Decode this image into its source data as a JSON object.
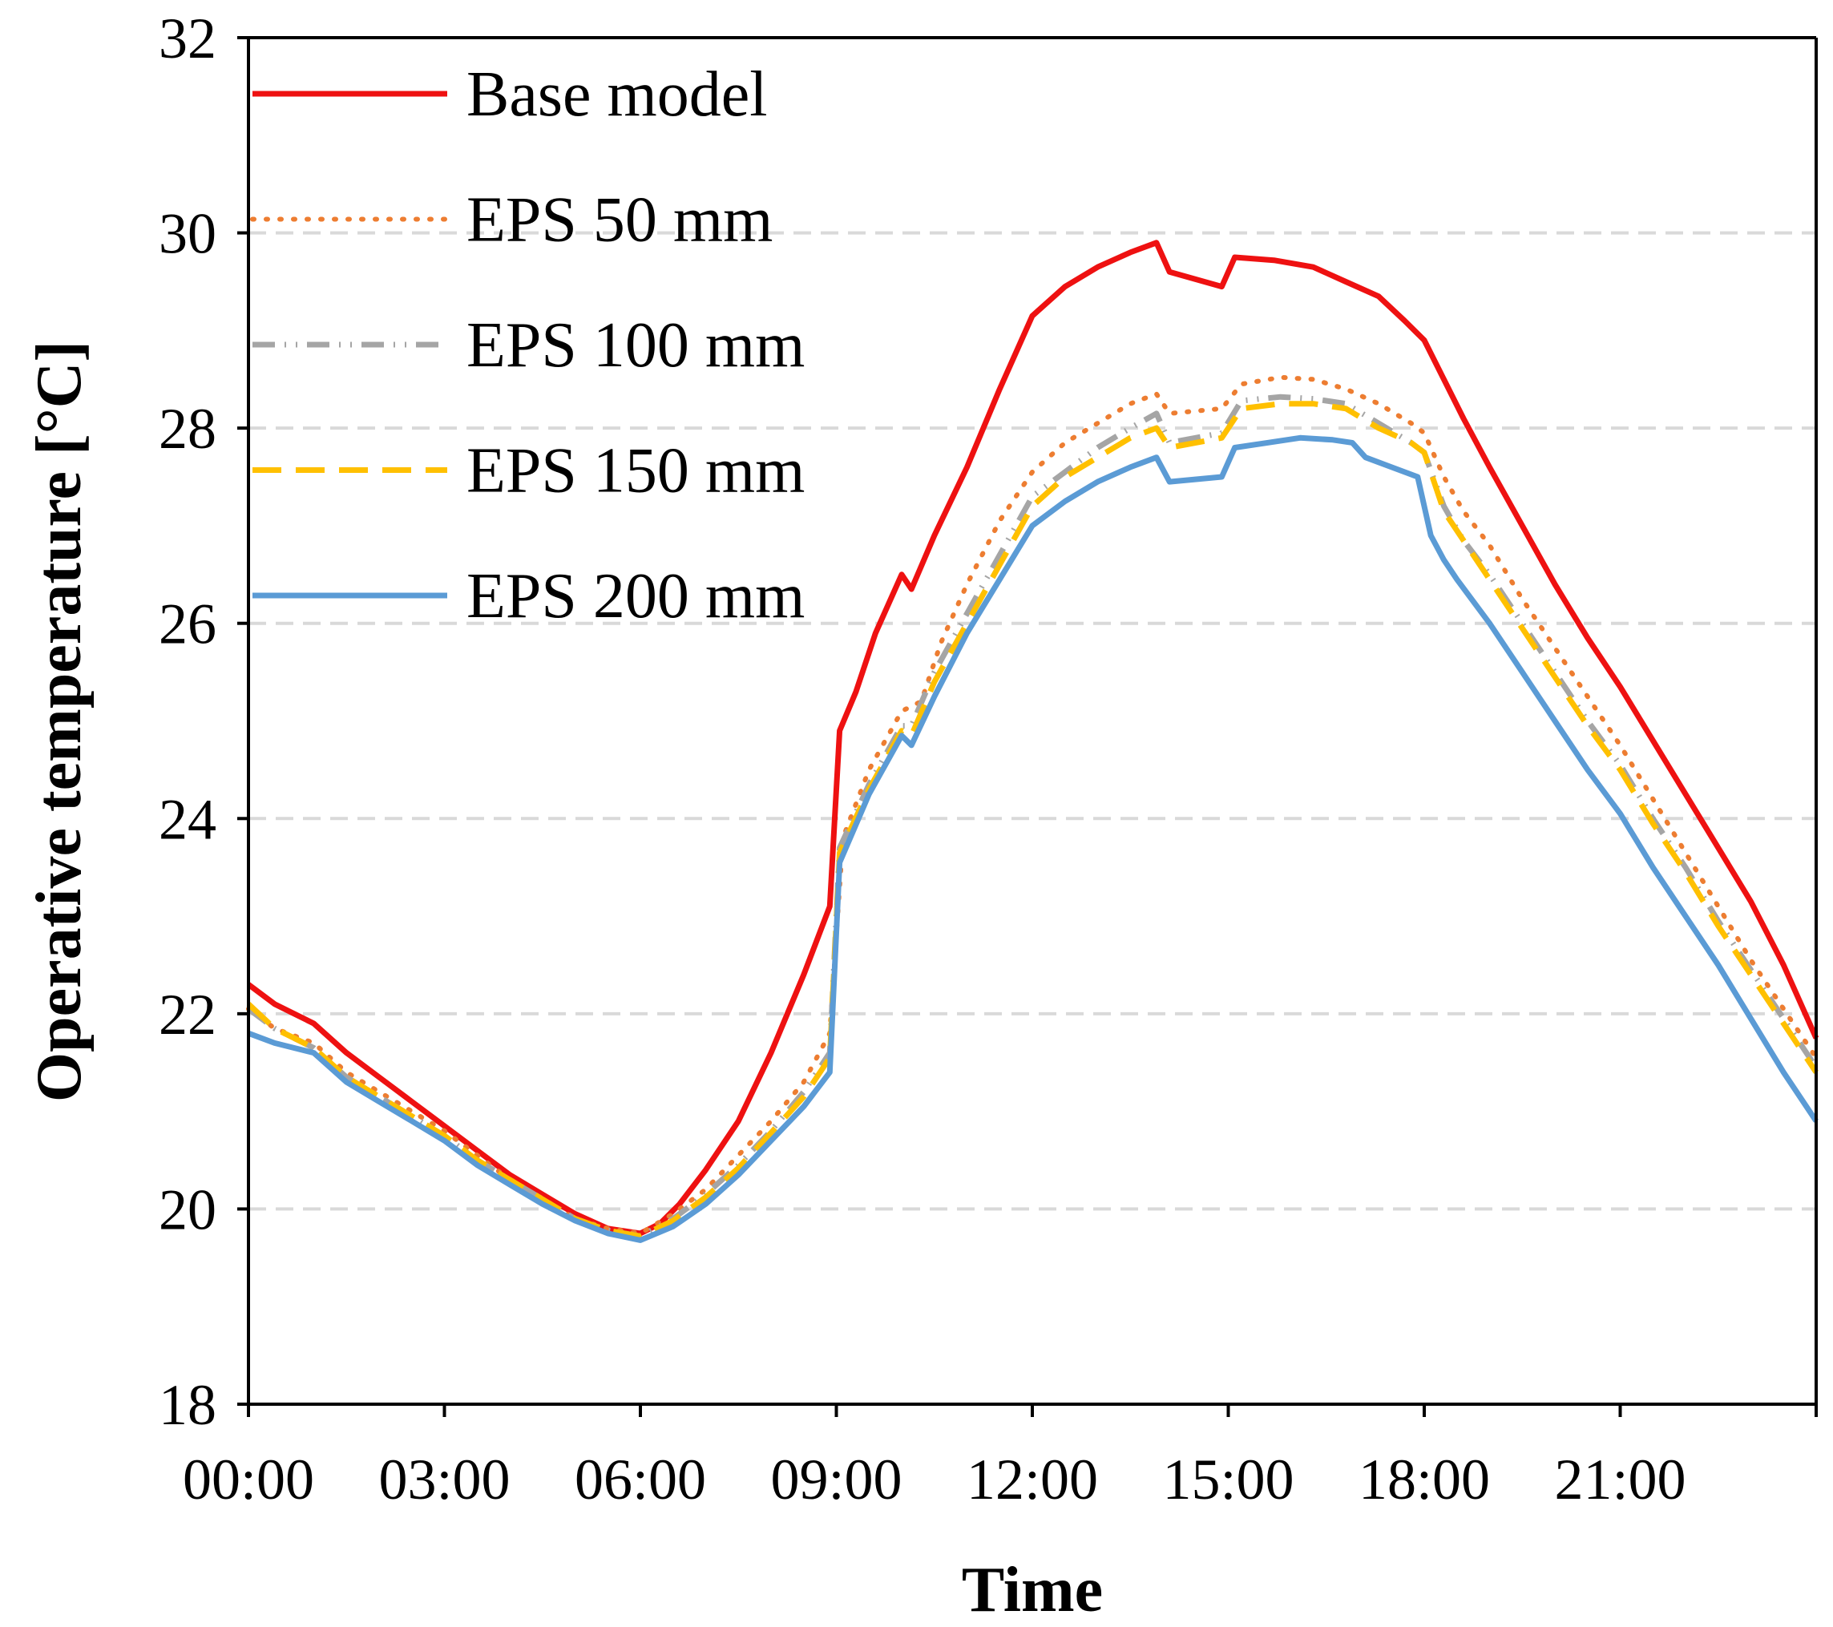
{
  "chart_data": {
    "type": "line",
    "title": "",
    "xlabel": "Time",
    "ylabel": "Operative temperature [°C]",
    "xlim": [
      0,
      24
    ],
    "ylim": [
      18,
      32
    ],
    "xticks": [
      0,
      3,
      6,
      9,
      12,
      15,
      18,
      21
    ],
    "xtick_labels": [
      "00:00",
      "03:00",
      "06:00",
      "09:00",
      "12:00",
      "15:00",
      "18:00",
      "21:00"
    ],
    "yticks": [
      18,
      20,
      22,
      24,
      26,
      28,
      30,
      32
    ],
    "ytick_labels": [
      "18",
      "20",
      "22",
      "24",
      "26",
      "28",
      "30",
      "32"
    ],
    "grid": "horizontal dashed",
    "legend_position": "top-left",
    "series": [
      {
        "name": "Base model",
        "color": "#ee1111",
        "style": "solid",
        "points": [
          [
            0,
            22.3
          ],
          [
            0.4,
            22.1
          ],
          [
            1,
            21.9
          ],
          [
            1.5,
            21.6
          ],
          [
            2,
            21.35
          ],
          [
            2.5,
            21.1
          ],
          [
            3,
            20.85
          ],
          [
            3.5,
            20.6
          ],
          [
            4,
            20.35
          ],
          [
            4.5,
            20.15
          ],
          [
            5,
            19.95
          ],
          [
            5.5,
            19.8
          ],
          [
            6,
            19.75
          ],
          [
            6.3,
            19.85
          ],
          [
            6.6,
            20.05
          ],
          [
            7,
            20.4
          ],
          [
            7.5,
            20.9
          ],
          [
            8,
            21.6
          ],
          [
            8.5,
            22.4
          ],
          [
            8.9,
            23.1
          ],
          [
            9.05,
            24.9
          ],
          [
            9.3,
            25.3
          ],
          [
            9.6,
            25.9
          ],
          [
            10,
            26.5
          ],
          [
            10.15,
            26.35
          ],
          [
            10.5,
            26.9
          ],
          [
            11,
            27.6
          ],
          [
            11.5,
            28.4
          ],
          [
            12,
            29.15
          ],
          [
            12.5,
            29.45
          ],
          [
            13,
            29.65
          ],
          [
            13.5,
            29.8
          ],
          [
            13.9,
            29.9
          ],
          [
            14.1,
            29.6
          ],
          [
            14.9,
            29.45
          ],
          [
            15.1,
            29.75
          ],
          [
            15.7,
            29.72
          ],
          [
            16.3,
            29.65
          ],
          [
            16.8,
            29.5
          ],
          [
            17.3,
            29.35
          ],
          [
            17.7,
            29.1
          ],
          [
            18,
            28.9
          ],
          [
            18.3,
            28.5
          ],
          [
            18.6,
            28.1
          ],
          [
            19,
            27.6
          ],
          [
            19.5,
            27
          ],
          [
            20,
            26.4
          ],
          [
            20.5,
            25.85
          ],
          [
            21,
            25.35
          ],
          [
            21.5,
            24.8
          ],
          [
            22,
            24.25
          ],
          [
            22.5,
            23.7
          ],
          [
            23,
            23.15
          ],
          [
            23.5,
            22.5
          ],
          [
            24,
            21.75
          ]
        ]
      },
      {
        "name": "EPS 50 mm",
        "color": "#ed7d31",
        "style": "dotted",
        "points": [
          [
            0,
            22.05
          ],
          [
            0.4,
            21.85
          ],
          [
            1,
            21.7
          ],
          [
            1.5,
            21.4
          ],
          [
            2,
            21.2
          ],
          [
            2.5,
            21
          ],
          [
            3,
            20.8
          ],
          [
            3.5,
            20.55
          ],
          [
            4,
            20.3
          ],
          [
            4.5,
            20.1
          ],
          [
            5,
            19.9
          ],
          [
            5.5,
            19.8
          ],
          [
            6,
            19.75
          ],
          [
            6.5,
            19.95
          ],
          [
            7,
            20.2
          ],
          [
            7.5,
            20.55
          ],
          [
            8,
            20.9
          ],
          [
            8.5,
            21.3
          ],
          [
            8.9,
            21.8
          ],
          [
            9.1,
            23.8
          ],
          [
            9.5,
            24.5
          ],
          [
            10,
            25.1
          ],
          [
            10.3,
            25.2
          ],
          [
            10.6,
            25.8
          ],
          [
            11,
            26.4
          ],
          [
            11.5,
            27.05
          ],
          [
            12,
            27.55
          ],
          [
            12.5,
            27.85
          ],
          [
            13,
            28.05
          ],
          [
            13.5,
            28.25
          ],
          [
            13.9,
            28.35
          ],
          [
            14.1,
            28.15
          ],
          [
            14.9,
            28.2
          ],
          [
            15.2,
            28.45
          ],
          [
            15.8,
            28.52
          ],
          [
            16.3,
            28.5
          ],
          [
            16.8,
            28.4
          ],
          [
            17.3,
            28.25
          ],
          [
            17.8,
            28.05
          ],
          [
            18,
            27.95
          ],
          [
            18.3,
            27.5
          ],
          [
            18.6,
            27.15
          ],
          [
            19,
            26.8
          ],
          [
            19.5,
            26.25
          ],
          [
            20,
            25.75
          ],
          [
            20.5,
            25.25
          ],
          [
            21,
            24.75
          ],
          [
            21.5,
            24.2
          ],
          [
            22,
            23.65
          ],
          [
            22.5,
            23.1
          ],
          [
            23,
            22.55
          ],
          [
            23.5,
            22.05
          ],
          [
            24,
            21.55
          ]
        ]
      },
      {
        "name": "EPS 100 mm",
        "color": "#a5a5a5",
        "style": "dash-dot",
        "points": [
          [
            0,
            22.05
          ],
          [
            0.4,
            21.85
          ],
          [
            1,
            21.65
          ],
          [
            1.5,
            21.35
          ],
          [
            2,
            21.15
          ],
          [
            2.5,
            20.95
          ],
          [
            3,
            20.75
          ],
          [
            3.5,
            20.5
          ],
          [
            4,
            20.3
          ],
          [
            4.5,
            20.1
          ],
          [
            5,
            19.9
          ],
          [
            5.5,
            19.78
          ],
          [
            6,
            19.72
          ],
          [
            6.5,
            19.9
          ],
          [
            7,
            20.15
          ],
          [
            7.5,
            20.45
          ],
          [
            8,
            20.8
          ],
          [
            8.5,
            21.2
          ],
          [
            8.9,
            21.6
          ],
          [
            9.05,
            23.7
          ],
          [
            9.5,
            24.35
          ],
          [
            10,
            24.95
          ],
          [
            10.15,
            24.95
          ],
          [
            10.5,
            25.5
          ],
          [
            11,
            26.1
          ],
          [
            11.5,
            26.7
          ],
          [
            12,
            27.3
          ],
          [
            12.5,
            27.55
          ],
          [
            13,
            27.8
          ],
          [
            13.5,
            28
          ],
          [
            13.9,
            28.15
          ],
          [
            14.1,
            27.85
          ],
          [
            14.9,
            27.95
          ],
          [
            15.2,
            28.28
          ],
          [
            15.8,
            28.32
          ],
          [
            16.3,
            28.3
          ],
          [
            16.8,
            28.25
          ],
          [
            17.3,
            28.05
          ],
          [
            17.8,
            27.85
          ],
          [
            18,
            27.75
          ],
          [
            18.3,
            27.2
          ],
          [
            18.6,
            26.85
          ],
          [
            19,
            26.5
          ],
          [
            19.5,
            26
          ],
          [
            20,
            25.5
          ],
          [
            20.5,
            25
          ],
          [
            21,
            24.55
          ],
          [
            21.5,
            24
          ],
          [
            22,
            23.5
          ],
          [
            22.5,
            22.95
          ],
          [
            23,
            22.45
          ],
          [
            23.5,
            21.95
          ],
          [
            24,
            21.45
          ]
        ]
      },
      {
        "name": "EPS 150 mm",
        "color": "#ffc000",
        "style": "dashed",
        "points": [
          [
            0,
            22.1
          ],
          [
            0.4,
            21.85
          ],
          [
            1,
            21.65
          ],
          [
            1.5,
            21.35
          ],
          [
            2,
            21.15
          ],
          [
            2.5,
            20.95
          ],
          [
            3,
            20.75
          ],
          [
            3.5,
            20.5
          ],
          [
            4,
            20.3
          ],
          [
            4.5,
            20.1
          ],
          [
            5,
            19.9
          ],
          [
            5.5,
            19.78
          ],
          [
            6,
            19.72
          ],
          [
            6.5,
            19.88
          ],
          [
            7,
            20.12
          ],
          [
            7.5,
            20.42
          ],
          [
            8,
            20.78
          ],
          [
            8.5,
            21.15
          ],
          [
            8.9,
            21.55
          ],
          [
            9.05,
            23.65
          ],
          [
            9.5,
            24.3
          ],
          [
            10,
            24.9
          ],
          [
            10.15,
            24.85
          ],
          [
            10.5,
            25.4
          ],
          [
            11,
            26
          ],
          [
            11.5,
            26.6
          ],
          [
            12,
            27.2
          ],
          [
            12.5,
            27.5
          ],
          [
            13,
            27.7
          ],
          [
            13.5,
            27.9
          ],
          [
            13.9,
            28
          ],
          [
            14.1,
            27.8
          ],
          [
            14.9,
            27.9
          ],
          [
            15.2,
            28.2
          ],
          [
            15.8,
            28.25
          ],
          [
            16.3,
            28.25
          ],
          [
            16.8,
            28.2
          ],
          [
            17.3,
            28
          ],
          [
            17.8,
            27.85
          ],
          [
            18,
            27.75
          ],
          [
            18.3,
            27.15
          ],
          [
            18.6,
            26.85
          ],
          [
            19,
            26.45
          ],
          [
            19.5,
            25.95
          ],
          [
            20,
            25.45
          ],
          [
            20.5,
            24.95
          ],
          [
            21,
            24.5
          ],
          [
            21.5,
            23.95
          ],
          [
            22,
            23.45
          ],
          [
            22.5,
            22.9
          ],
          [
            23,
            22.4
          ],
          [
            23.5,
            21.9
          ],
          [
            24,
            21.4
          ]
        ]
      },
      {
        "name": "EPS 200 mm",
        "color": "#5b9bd5",
        "style": "solid",
        "points": [
          [
            0,
            21.8
          ],
          [
            0.4,
            21.7
          ],
          [
            1,
            21.6
          ],
          [
            1.5,
            21.3
          ],
          [
            2,
            21.1
          ],
          [
            2.5,
            20.9
          ],
          [
            3,
            20.7
          ],
          [
            3.5,
            20.45
          ],
          [
            4,
            20.25
          ],
          [
            4.5,
            20.05
          ],
          [
            5,
            19.88
          ],
          [
            5.5,
            19.75
          ],
          [
            6,
            19.68
          ],
          [
            6.5,
            19.82
          ],
          [
            7,
            20.05
          ],
          [
            7.5,
            20.35
          ],
          [
            8,
            20.7
          ],
          [
            8.5,
            21.05
          ],
          [
            8.9,
            21.4
          ],
          [
            9.05,
            23.55
          ],
          [
            9.5,
            24.25
          ],
          [
            10,
            24.85
          ],
          [
            10.15,
            24.75
          ],
          [
            10.5,
            25.25
          ],
          [
            11,
            25.9
          ],
          [
            11.5,
            26.45
          ],
          [
            12,
            27
          ],
          [
            12.5,
            27.25
          ],
          [
            13,
            27.45
          ],
          [
            13.5,
            27.6
          ],
          [
            13.9,
            27.7
          ],
          [
            14.1,
            27.45
          ],
          [
            14.9,
            27.5
          ],
          [
            15.1,
            27.8
          ],
          [
            15.6,
            27.85
          ],
          [
            16.1,
            27.9
          ],
          [
            16.6,
            27.88
          ],
          [
            16.9,
            27.85
          ],
          [
            17.1,
            27.7
          ],
          [
            17.5,
            27.6
          ],
          [
            17.9,
            27.5
          ],
          [
            18.1,
            26.9
          ],
          [
            18.3,
            26.65
          ],
          [
            18.5,
            26.45
          ],
          [
            19,
            26
          ],
          [
            19.5,
            25.5
          ],
          [
            20,
            25
          ],
          [
            20.5,
            24.5
          ],
          [
            21,
            24.05
          ],
          [
            21.5,
            23.5
          ],
          [
            22,
            23
          ],
          [
            22.5,
            22.5
          ],
          [
            23,
            21.95
          ],
          [
            23.5,
            21.4
          ],
          [
            24,
            20.9
          ]
        ]
      }
    ]
  }
}
